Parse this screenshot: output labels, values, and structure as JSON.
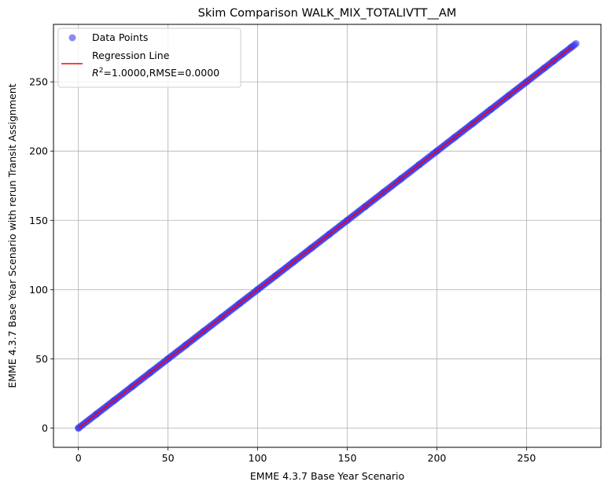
{
  "chart_data": {
    "type": "scatter",
    "title": "Skim Comparison WALK_MIX_TOTALIVTT__AM",
    "xlabel": "EMME 4.3.7 Base Year Scenario",
    "ylabel": "EMME 4.3.7 Base Year Scenario with rerun Transit Assignment",
    "xlim": [
      -13.9,
      291.5
    ],
    "ylim": [
      -13.9,
      291.5
    ],
    "xticks": [
      0,
      50,
      100,
      150,
      200,
      250
    ],
    "yticks": [
      0,
      50,
      100,
      150,
      200,
      250
    ],
    "grid": true,
    "legend_position": "top-left",
    "series": [
      {
        "name": "Data Points",
        "kind": "scatter",
        "color": "#3a3af0",
        "x": [
          0,
          10,
          20,
          30,
          40,
          50,
          60,
          70,
          80,
          90,
          100,
          110,
          120,
          130,
          140,
          150,
          160,
          170,
          180,
          190,
          200,
          210,
          220,
          230,
          240,
          250,
          260,
          265,
          270,
          275,
          277.6
        ],
        "y": [
          0,
          10,
          20,
          30,
          40,
          50,
          60,
          70,
          80,
          90,
          100,
          110,
          120,
          130,
          140,
          150,
          160,
          170,
          180,
          190,
          200,
          210,
          220,
          230,
          240,
          250,
          260,
          265,
          270,
          275,
          277.6
        ]
      },
      {
        "name": "Regression Line",
        "kind": "line",
        "color": "#ff0000",
        "x": [
          0,
          275
        ],
        "y": [
          0,
          275
        ]
      }
    ],
    "regression_stats": "$R^2$=1.0000,RMSE=0.0000",
    "legend": {
      "line1": "Data Points",
      "line2": "Regression Line",
      "r2_prefix": "R",
      "r2_sup": "2",
      "r2_rest": "=1.0000,RMSE=0.0000"
    }
  }
}
